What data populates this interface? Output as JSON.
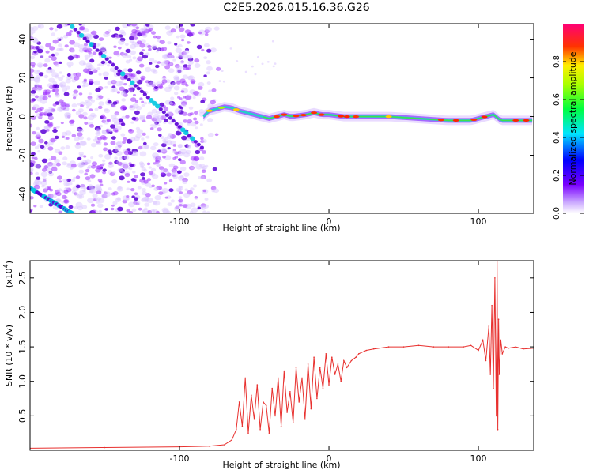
{
  "figure_title": "C2E5.2026.015.16.36.G26",
  "colors": {
    "snr_line": "#e8302e",
    "track_weak": "#a033ff",
    "track_strong": "#5a00d6",
    "axis": "#000000"
  },
  "chart_data": [
    {
      "type": "heatmap",
      "title": "C2E5.2026.015.16.36.G26",
      "xlabel": "Height of straight line (km)",
      "ylabel": "Frequency (Hz)",
      "xlim": [
        -200,
        137
      ],
      "ylim": [
        -50,
        48
      ],
      "x_ticks": [
        -100,
        0,
        100
      ],
      "x_tick_labels": [
        "-100",
        "0",
        "100"
      ],
      "y_ticks": [
        -40,
        -20,
        0,
        20,
        40
      ],
      "y_tick_labels": [
        "-40",
        "-20",
        "0",
        "20",
        "40"
      ],
      "noise_region_km": [
        -200,
        -72
      ],
      "signal_track": {
        "x": [
          -84,
          -80,
          -75,
          -70,
          -65,
          -60,
          -55,
          -50,
          -45,
          -40,
          -35,
          -30,
          -25,
          -20,
          -15,
          -10,
          -5,
          0,
          10,
          20,
          40,
          60,
          80,
          95,
          100,
          105,
          110,
          115,
          120,
          137
        ],
        "y": [
          0,
          3,
          4,
          5,
          4.5,
          3,
          2,
          1,
          0,
          -1,
          0,
          1,
          0,
          0.5,
          1,
          2,
          1,
          1,
          0,
          0,
          0,
          -1,
          -2,
          -2,
          -1,
          0,
          1,
          -2,
          -2,
          -2
        ]
      },
      "dispersed_tracks": [
        {
          "x": [
            -174,
            -85
          ],
          "y": [
            48,
            -16
          ]
        },
        {
          "x": [
            -200,
            -172
          ],
          "y": [
            -37,
            -50
          ]
        }
      ],
      "colorbar": {
        "label": "Normalized spectral amplitude",
        "range": [
          0.0,
          1.0
        ],
        "ticks": [
          0.0,
          0.2,
          0.4,
          0.6,
          0.8
        ],
        "tick_labels": [
          "0.0",
          "0.2",
          "0.4",
          "0.6",
          "0.8"
        ]
      }
    },
    {
      "type": "line",
      "xlabel": "Height of straight line (km)",
      "ylabel": "SNR (10 * v/v)",
      "multiplier_label": "(x10",
      "multiplier_exp": "4",
      "multiplier_close": ")",
      "xlim": [
        -200,
        137
      ],
      "ylim": [
        0,
        2.75
      ],
      "x_ticks": [
        -100,
        0,
        100
      ],
      "x_tick_labels": [
        "-100",
        "0",
        "100"
      ],
      "y_ticks": [
        0.5,
        1.0,
        1.5,
        2.0,
        2.5
      ],
      "y_tick_labels": [
        "0.5",
        "1.0",
        "1.5",
        "2.0",
        "2.5"
      ],
      "series": [
        {
          "name": "SNR",
          "x": [
            -200,
            -150,
            -100,
            -80,
            -70,
            -65,
            -62,
            -60,
            -58,
            -56,
            -54,
            -52,
            -50,
            -48,
            -46,
            -44,
            -42,
            -40,
            -38,
            -36,
            -34,
            -32,
            -30,
            -28,
            -26,
            -24,
            -22,
            -20,
            -18,
            -16,
            -14,
            -12,
            -10,
            -8,
            -6,
            -4,
            -2,
            0,
            2,
            4,
            6,
            8,
            10,
            12,
            15,
            18,
            20,
            25,
            30,
            40,
            50,
            60,
            70,
            80,
            90,
            95,
            100,
            103,
            105,
            107,
            108,
            109,
            110,
            111,
            112,
            112.5,
            113,
            113.5,
            114,
            115,
            116,
            118,
            120,
            125,
            130,
            137
          ],
          "y": [
            0.03,
            0.04,
            0.05,
            0.06,
            0.08,
            0.15,
            0.3,
            0.7,
            0.35,
            1.05,
            0.25,
            0.8,
            0.45,
            0.95,
            0.3,
            0.7,
            0.65,
            0.25,
            0.9,
            0.5,
            1.05,
            0.35,
            1.15,
            0.55,
            0.85,
            0.4,
            1.2,
            0.7,
            1.05,
            0.45,
            1.25,
            0.6,
            1.35,
            0.75,
            1.2,
            0.9,
            1.4,
            0.95,
            1.35,
            1.1,
            1.25,
            1.0,
            1.3,
            1.2,
            1.3,
            1.35,
            1.4,
            1.45,
            1.47,
            1.5,
            1.5,
            1.52,
            1.5,
            1.5,
            1.5,
            1.52,
            1.45,
            1.6,
            1.3,
            1.8,
            1.1,
            2.1,
            0.9,
            2.5,
            0.5,
            2.75,
            0.3,
            1.9,
            1.1,
            1.6,
            1.4,
            1.5,
            1.48,
            1.5,
            1.47,
            1.48
          ]
        }
      ]
    }
  ]
}
